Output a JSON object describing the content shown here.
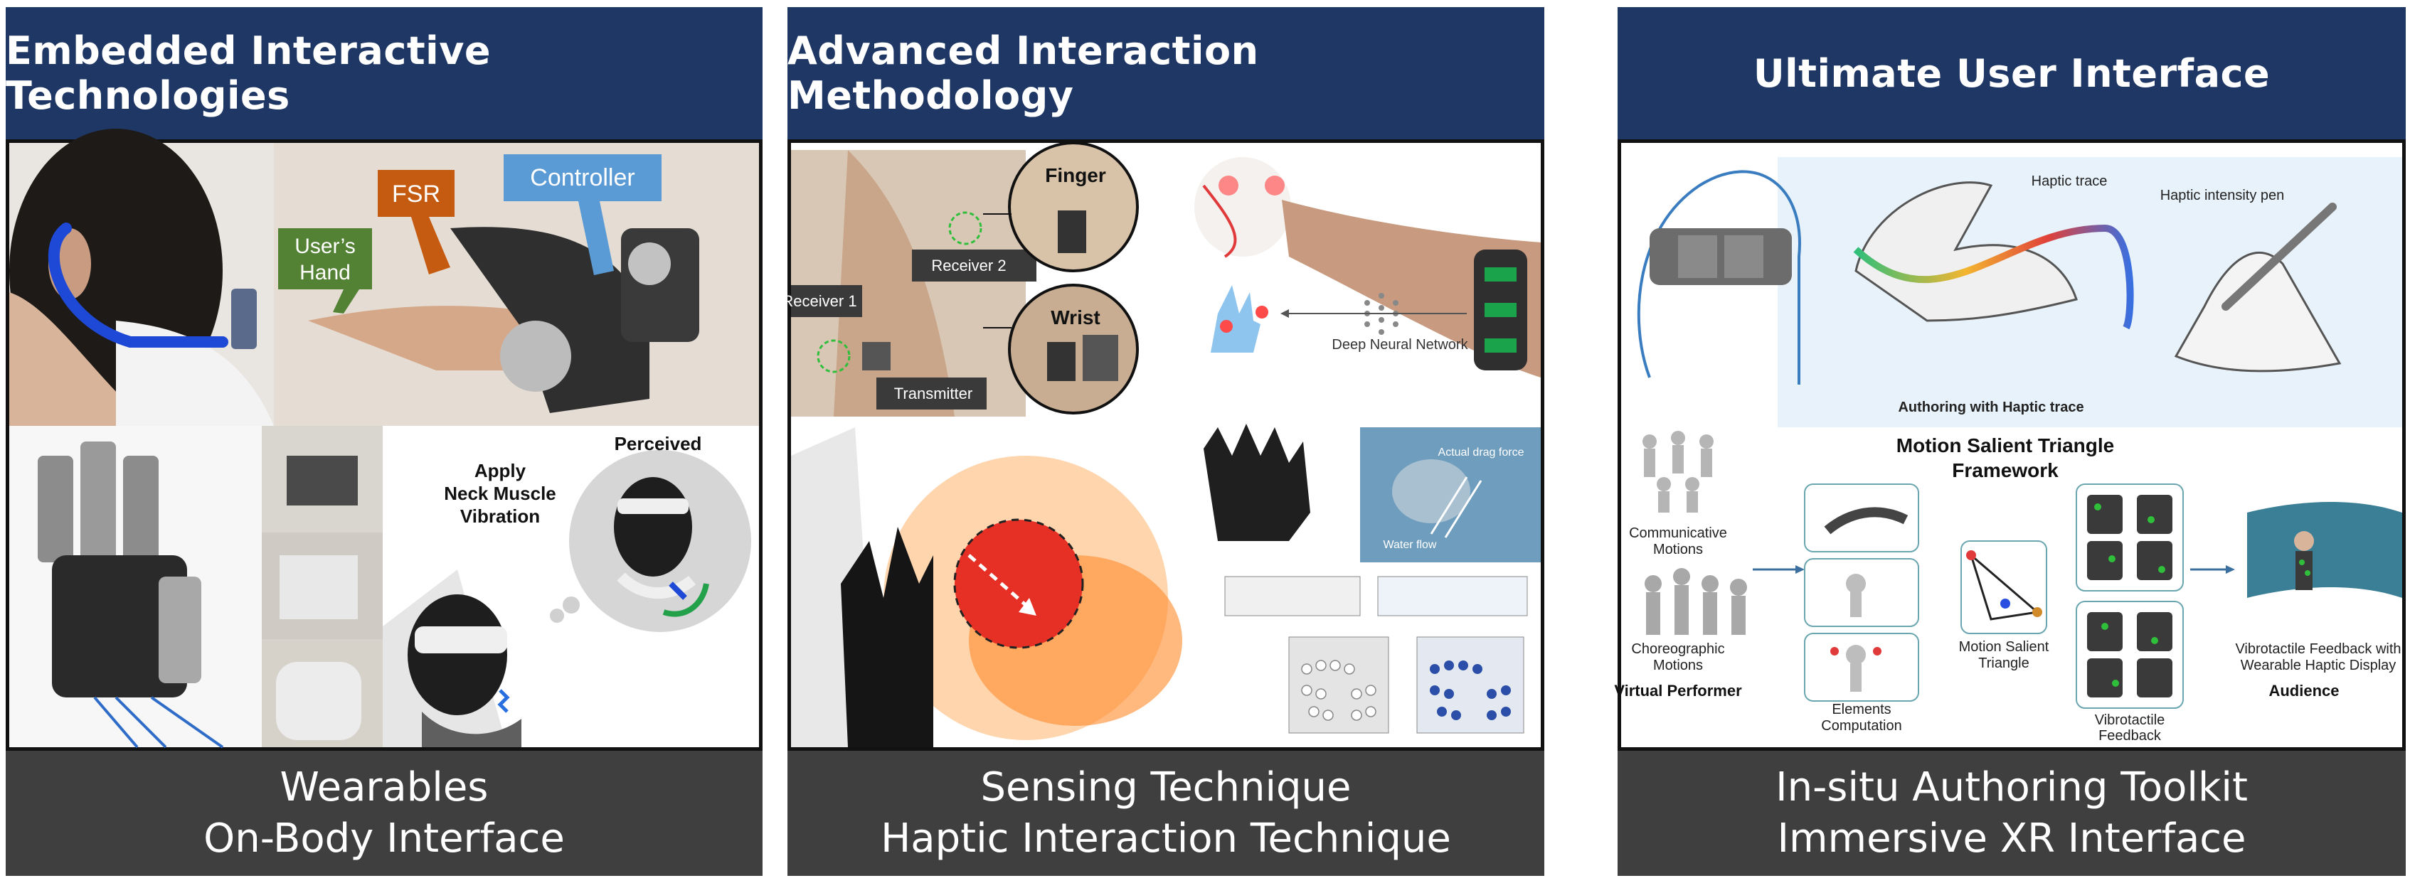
{
  "panels": [
    {
      "title": "Embedded Interactive Technologies",
      "footer": [
        "Wearables",
        "On-Body Interface"
      ],
      "callouts": {
        "fsr": "FSR",
        "controller": "Controller",
        "users_hand_1": "User’s",
        "users_hand_2": "Hand"
      },
      "labels": {
        "perceived": "Perceived",
        "apply_1": "Apply",
        "apply_2": "Neck Muscle",
        "apply_3": "Vibration"
      }
    },
    {
      "title": "Advanced Interaction Methodology",
      "footer": [
        "Sensing Technique",
        "Haptic Interaction Technique"
      ],
      "labels": {
        "finger": "Finger",
        "wrist": "Wrist",
        "receiver_1": "Receiver 1",
        "receiver_2": "Receiver 2",
        "transmitter": "Transmitter",
        "dnn": "Deep Neural Network",
        "actual_drag_force": "Actual drag force",
        "water_flow": "Water flow"
      }
    },
    {
      "title": "Ultimate User Interface",
      "footer": [
        "In-situ Authoring Toolkit",
        "Immersive XR Interface"
      ],
      "labels": {
        "haptic_trace": "Haptic trace",
        "haptic_pen": "Haptic intensity pen",
        "authoring": "Authoring with Haptic trace",
        "framework_1": "Motion Salient Triangle",
        "framework_2": "Framework",
        "communicative_1": "Communicative",
        "communicative_2": "Motions",
        "choreographic_1": "Choreographic",
        "choreographic_2": "Motions",
        "virtual_performer": "Virtual Performer",
        "elements_1": "Elements",
        "elements_2": "Computation",
        "mst_1": "Motion Salient",
        "mst_2": "Triangle",
        "vt_1": "Vibrotactile",
        "vt_2": "Feedback",
        "vf_1": "Vibrotactile Feedback with",
        "vf_2": "Wearable Haptic Display",
        "audience": "Audience"
      }
    }
  ],
  "colors": {
    "header_bg": "#1f3764",
    "footer_bg": "#3f3f3f",
    "fsr": "#c55a11",
    "controller": "#5b9bd5",
    "hand": "#548235"
  }
}
